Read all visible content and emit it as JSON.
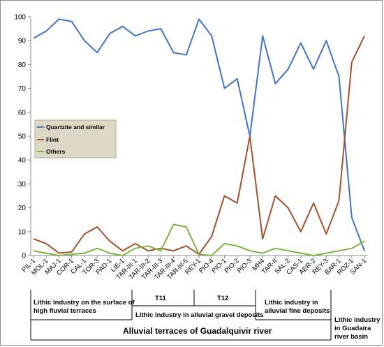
{
  "chart_data": {
    "type": "line",
    "categories": [
      "PIL-1",
      "MOL-1",
      "MAJ-1",
      "COR-1",
      "CAL-1",
      "TOR-3",
      "PAD-1",
      "LIE-1",
      "TAR-III-1",
      "TAR-III-2",
      "TAR-III-3",
      "TAR-III-4",
      "TAR-III-5",
      "REY-1",
      "PIO-4",
      "PIO-1",
      "PIO-2",
      "PIO-3",
      "MH4",
      "TAR-II",
      "SAL-2",
      "CAS-1",
      "AER-2",
      "REY-3",
      "BAR-1",
      "ROZ-1",
      "SAN-1"
    ],
    "series": [
      {
        "name": "Quartzite and similar",
        "color": "#4472c4",
        "values": [
          91,
          94,
          99,
          98,
          90,
          85,
          93,
          96,
          92,
          94,
          95,
          85,
          84,
          99,
          92,
          70,
          74,
          50,
          92,
          72,
          78,
          89,
          78,
          90,
          75,
          16,
          2
        ]
      },
      {
        "name": "Flint",
        "color": "#a0522d",
        "values": [
          7,
          5,
          1,
          1.5,
          9,
          12,
          6,
          2,
          5,
          2,
          3,
          2,
          4,
          0.5,
          8,
          25,
          22,
          50,
          7,
          25,
          20,
          10,
          22,
          9,
          23,
          81,
          92
        ]
      },
      {
        "name": "Others",
        "color": "#7cb342",
        "values": [
          2,
          1,
          0,
          0.5,
          1,
          3,
          1,
          0,
          3,
          4,
          2,
          13,
          12,
          0.5,
          0,
          5,
          4,
          2,
          1,
          3,
          2,
          1,
          0,
          1,
          2,
          3,
          6
        ]
      }
    ],
    "ylim": [
      0,
      100
    ],
    "yticks": [
      0,
      10,
      20,
      30,
      40,
      50,
      60,
      70,
      80,
      90,
      100
    ],
    "grid": false,
    "legend_position": "left-middle"
  },
  "groups": {
    "surface": "Lithic industry on the surface of high fluvial terraces",
    "t11": "T11",
    "t12": "T12",
    "gravel": "Lithic industry in alluvial gravel deposits",
    "fine": "Lithic industry in alluvial fine deposits",
    "guadalquivir": "Alluvial terraces of Guadalquivir river",
    "guadaira": "Lithic industry in Guadaira river basin"
  }
}
